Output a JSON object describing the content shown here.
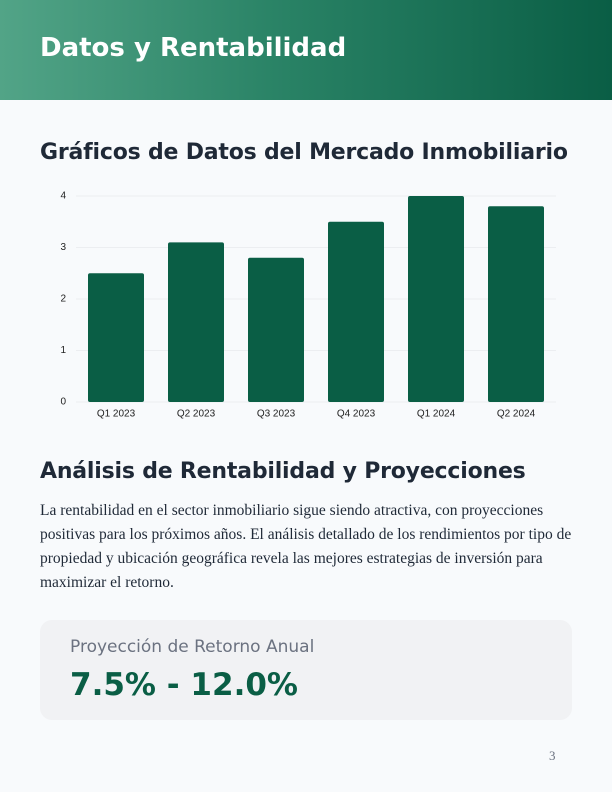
{
  "header": {
    "title": "Datos y Rentabilidad"
  },
  "chart_data": {
    "type": "bar",
    "title": "Gráficos de Datos del Mercado Inmobiliario",
    "categories": [
      "Q1 2023",
      "Q2 2023",
      "Q3 2023",
      "Q4 2023",
      "Q1 2024",
      "Q2 2024"
    ],
    "values": [
      2.5,
      3.1,
      2.8,
      3.5,
      4.0,
      3.8
    ],
    "color": "#0a5e45",
    "ylim": [
      0,
      4
    ],
    "yticks": [
      0,
      1,
      2,
      3,
      4
    ],
    "grid": true
  },
  "analysis": {
    "title": "Análisis de Rentabilidad y Proyecciones",
    "text": "La rentabilidad en el sector inmobiliario sigue siendo atractiva, con proyecciones positivas para los próximos años. El análisis detallado de los rendimientos por tipo de propiedad y ubicación geográfica revela las mejores estrategias de inversión para maximizar el retorno."
  },
  "card": {
    "label": "Proyección de Retorno Anual",
    "value": "7.5% - 12.0%"
  },
  "page_number": "3"
}
